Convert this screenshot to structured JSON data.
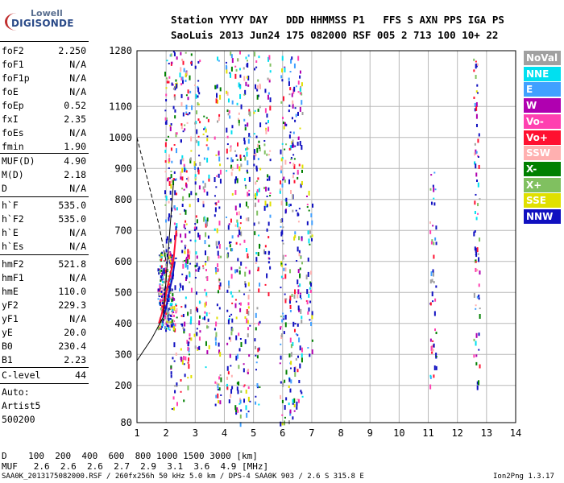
{
  "logo": {
    "line1": "Lowell",
    "line2": "DIGISONDE"
  },
  "header": {
    "row1": "Station YYYY DAY   DDD HHMMSS P1   FFS S AXN PPS IGA PS",
    "row2": "SaoLuis 2013 Jun24 175 082000 RSF 005 2 713 100 10+ 22"
  },
  "params": {
    "group1": [
      {
        "name": "foF2",
        "value": "2.250"
      },
      {
        "name": "foF1",
        "value": "N/A"
      },
      {
        "name": "foF1p",
        "value": "N/A"
      },
      {
        "name": "foE",
        "value": "N/A"
      },
      {
        "name": "foEp",
        "value": "0.52"
      },
      {
        "name": "fxI",
        "value": "2.35"
      },
      {
        "name": "foEs",
        "value": "N/A"
      },
      {
        "name": "fmin",
        "value": "1.90"
      }
    ],
    "group2": [
      {
        "name": "MUF(D)",
        "value": "4.90"
      },
      {
        "name": "M(D)",
        "value": "2.18"
      },
      {
        "name": "D",
        "value": "N/A"
      }
    ],
    "group3": [
      {
        "name": "h`F",
        "value": "535.0"
      },
      {
        "name": "h`F2",
        "value": "535.0"
      },
      {
        "name": "h`E",
        "value": "N/A"
      },
      {
        "name": "h`Es",
        "value": "N/A"
      }
    ],
    "group4": [
      {
        "name": "hmF2",
        "value": "521.8"
      },
      {
        "name": "hmF1",
        "value": "N/A"
      },
      {
        "name": "hmE",
        "value": "110.0"
      },
      {
        "name": "yF2",
        "value": "229.3"
      },
      {
        "name": "yF1",
        "value": "N/A"
      },
      {
        "name": "yE",
        "value": "20.0"
      },
      {
        "name": "B0",
        "value": "230.4"
      },
      {
        "name": "B1",
        "value": "2.23"
      }
    ],
    "clevel": {
      "name": "C-level",
      "value": "44"
    },
    "auto": [
      "Auto:",
      "Artist5",
      "500200"
    ]
  },
  "legend": [
    {
      "label": "NoVal",
      "color": "#a0a0a0"
    },
    {
      "label": "NNE",
      "color": "#00e0f0"
    },
    {
      "label": "E",
      "color": "#40a0ff"
    },
    {
      "label": "W",
      "color": "#b000b0"
    },
    {
      "label": "Vo-",
      "color": "#ff40b0"
    },
    {
      "label": "Vo+",
      "color": "#ff1030"
    },
    {
      "label": "SSW",
      "color": "#ffb0b0"
    },
    {
      "label": "X-",
      "color": "#008000"
    },
    {
      "label": "X+",
      "color": "#80c060"
    },
    {
      "label": "SSE",
      "color": "#e0e000"
    },
    {
      "label": "NNW",
      "color": "#1010c0"
    }
  ],
  "bottom": {
    "d_row": "D    100  200  400  600  800 1000 1500 3000 [km]",
    "muf_row": "MUF   2.6  2.6  2.6  2.7  2.9  3.1  3.6  4.9 [MHz]",
    "footer": "SAA0K_2013175082000.RSF / 260fx256h 50 kHz 5.0 km / DPS-4 SAA0K 903 / 2.6 S 315.8 E",
    "version": "Ion2Png 1.3.17"
  },
  "chart_data": {
    "type": "scatter",
    "title": "",
    "xlabel": "",
    "ylabel": "",
    "xlim": [
      1,
      14
    ],
    "ylim": [
      80,
      1280
    ],
    "x_ticks": [
      "1",
      "2",
      "3",
      "4",
      "5",
      "6",
      "7",
      "8",
      "9",
      "10",
      "11",
      "12",
      "13",
      "14"
    ],
    "y_ticks": [
      "80",
      "200",
      "300",
      "400",
      "500",
      "600",
      "700",
      "800",
      "900",
      "1000",
      "1100",
      "1280"
    ],
    "traces": [
      {
        "name": "O-trace",
        "x": [
          1.75,
          1.85,
          1.95,
          2.05,
          2.15,
          2.25,
          2.35
        ],
        "y": [
          400,
          430,
          470,
          520,
          560,
          600,
          700
        ],
        "color": "#ff1030"
      },
      {
        "name": "X-trace",
        "x": [
          1.9,
          2.0,
          2.1,
          2.2,
          2.3
        ],
        "y": [
          420,
          450,
          500,
          540,
          600
        ],
        "color": "#1010c0"
      }
    ],
    "columns": [
      {
        "x": 2.05,
        "ymin": 380,
        "ymax": 1280
      },
      {
        "x": 2.25,
        "ymin": 100,
        "ymax": 1280
      },
      {
        "x": 2.55,
        "ymin": 150,
        "ymax": 1280
      },
      {
        "x": 2.75,
        "ymin": 180,
        "ymax": 1280
      },
      {
        "x": 3.05,
        "ymin": 300,
        "ymax": 1280
      },
      {
        "x": 3.35,
        "ymin": 250,
        "ymax": 1100
      },
      {
        "x": 3.75,
        "ymin": 140,
        "ymax": 1280
      },
      {
        "x": 4.15,
        "ymin": 150,
        "ymax": 1280
      },
      {
        "x": 4.45,
        "ymin": 80,
        "ymax": 1280
      },
      {
        "x": 4.75,
        "ymin": 80,
        "ymax": 1280
      },
      {
        "x": 5.1,
        "ymin": 120,
        "ymax": 1280
      },
      {
        "x": 5.45,
        "ymin": 500,
        "ymax": 1280
      },
      {
        "x": 6.0,
        "ymin": 80,
        "ymax": 1280
      },
      {
        "x": 6.3,
        "ymin": 80,
        "ymax": 1280
      },
      {
        "x": 6.55,
        "ymin": 120,
        "ymax": 1280
      },
      {
        "x": 6.9,
        "ymin": 300,
        "ymax": 850
      },
      {
        "x": 11.15,
        "ymin": 180,
        "ymax": 900
      },
      {
        "x": 12.65,
        "ymin": 180,
        "ymax": 1260
      }
    ]
  }
}
